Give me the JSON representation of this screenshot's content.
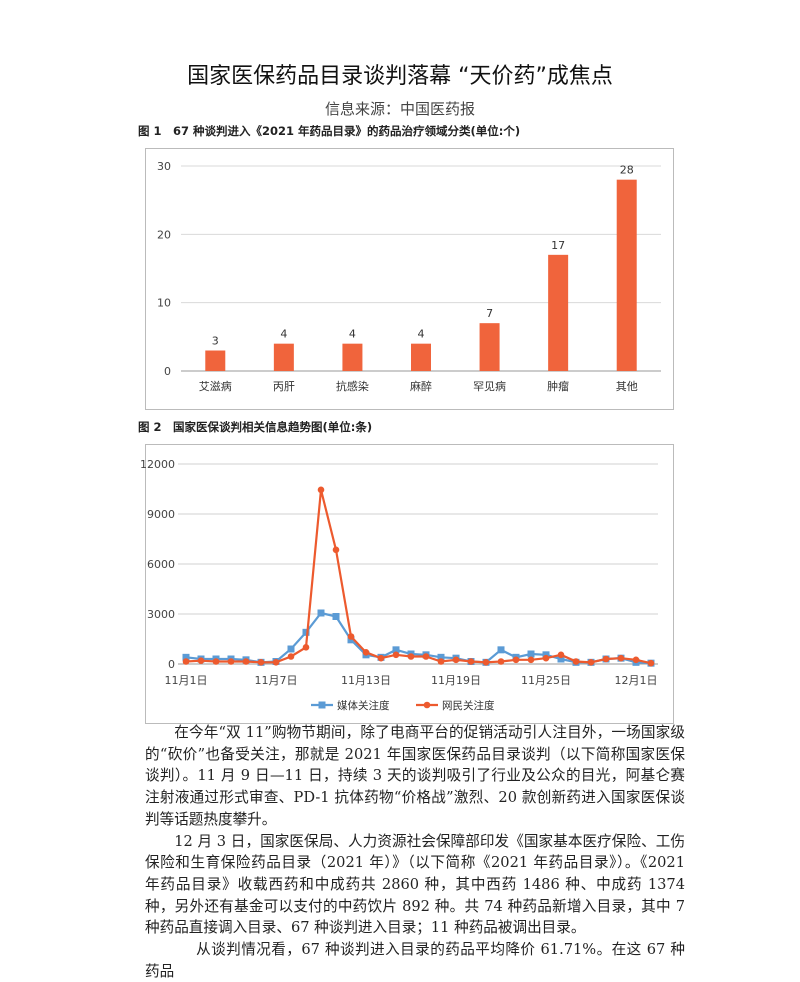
{
  "header": {
    "title": "国家医保药品目录谈判落幕 “天价药”成焦点",
    "source": "信息来源：中国医药报"
  },
  "figure1": {
    "caption": "图 1　67 种谈判进入《2021 年药品目录》的药品治疗领域分类(单位:个)"
  },
  "figure2": {
    "caption": "图 2　国家医保谈判相关信息趋势图(单位:条)"
  },
  "chart_data": [
    {
      "type": "bar",
      "categories": [
        "艾滋病",
        "丙肝",
        "抗感染",
        "麻醉",
        "罕见病",
        "肿瘤",
        "其他"
      ],
      "values": [
        3,
        4,
        4,
        4,
        7,
        17,
        28
      ],
      "ylim": [
        0,
        30
      ],
      "yticks": [
        0,
        10,
        20,
        30
      ],
      "color": "#f0643c",
      "data_labels": true
    },
    {
      "type": "line",
      "x": [
        "11月1日",
        "11月2日",
        "11月3日",
        "11月4日",
        "11月5日",
        "11月6日",
        "11月7日",
        "11月8日",
        "11月9日",
        "11月10日",
        "11月11日",
        "11月12日",
        "11月13日",
        "11月14日",
        "11月15日",
        "11月16日",
        "11月17日",
        "11月18日",
        "11月19日",
        "11月20日",
        "11月21日",
        "11月22日",
        "11月23日",
        "11月24日",
        "11月25日",
        "11月26日",
        "11月27日",
        "11月28日",
        "11月29日",
        "11月30日",
        "12月1日",
        "12月2日"
      ],
      "xtick_labels": [
        "11月1日",
        "11月7日",
        "11月13日",
        "11月19日",
        "11月25日",
        "12月1日"
      ],
      "ylim": [
        0,
        12000
      ],
      "yticks": [
        0,
        3000,
        6000,
        9000,
        12000
      ],
      "grid": true,
      "legend": "bottom",
      "series": [
        {
          "name": "媒体关注度",
          "color": "#5b9bd5",
          "marker": "square",
          "values": [
            400,
            300,
            300,
            300,
            250,
            100,
            150,
            900,
            1900,
            3060,
            2850,
            1450,
            550,
            400,
            850,
            600,
            550,
            400,
            350,
            150,
            100,
            850,
            400,
            600,
            550,
            300,
            100,
            100,
            300,
            350,
            100,
            50
          ]
        },
        {
          "name": "网民关注度",
          "color": "#ed5a2e",
          "marker": "circle",
          "values": [
            150,
            200,
            150,
            150,
            150,
            100,
            100,
            450,
            1000,
            10450,
            6850,
            1650,
            700,
            350,
            550,
            450,
            450,
            150,
            250,
            150,
            100,
            150,
            250,
            250,
            350,
            550,
            150,
            100,
            300,
            350,
            250,
            50
          ]
        }
      ]
    }
  ],
  "article": {
    "paragraphs": [
      "在今年“双 11”购物节期间，除了电商平台的促销活动引人注目外，一场国家级的“砍价”也备受关注，那就是 2021 年国家医保药品目录谈判（以下简称国家医保谈判）。11 月 9 日—11 日，持续 3 天的谈判吸引了行业及公众的目光，阿基仑赛注射液通过形式审查、PD-1 抗体药物“价格战”激烈、20 款创新药进入国家医保谈判等话题热度攀升。",
      "12 月 3 日，国家医保局、人力资源社会保障部印发《国家基本医疗保险、工伤保险和生育保险药品目录（2021 年）》（以下简称《2021 年药品目录》）。《2021 年药品目录》收载西药和中成药共 2860 种，其中西药 1486 种、中成药 1374 种，另外还有基金可以支付的中药饮片 892 种。共 74 种药品新增入目录，其中 7 种药品直接调入目录、67 种谈判进入目录；11 种药品被调出目录。",
      "从谈判情况看，67 种谈判进入目录的药品平均降价 61.71%。在这 67 种药品"
    ]
  }
}
